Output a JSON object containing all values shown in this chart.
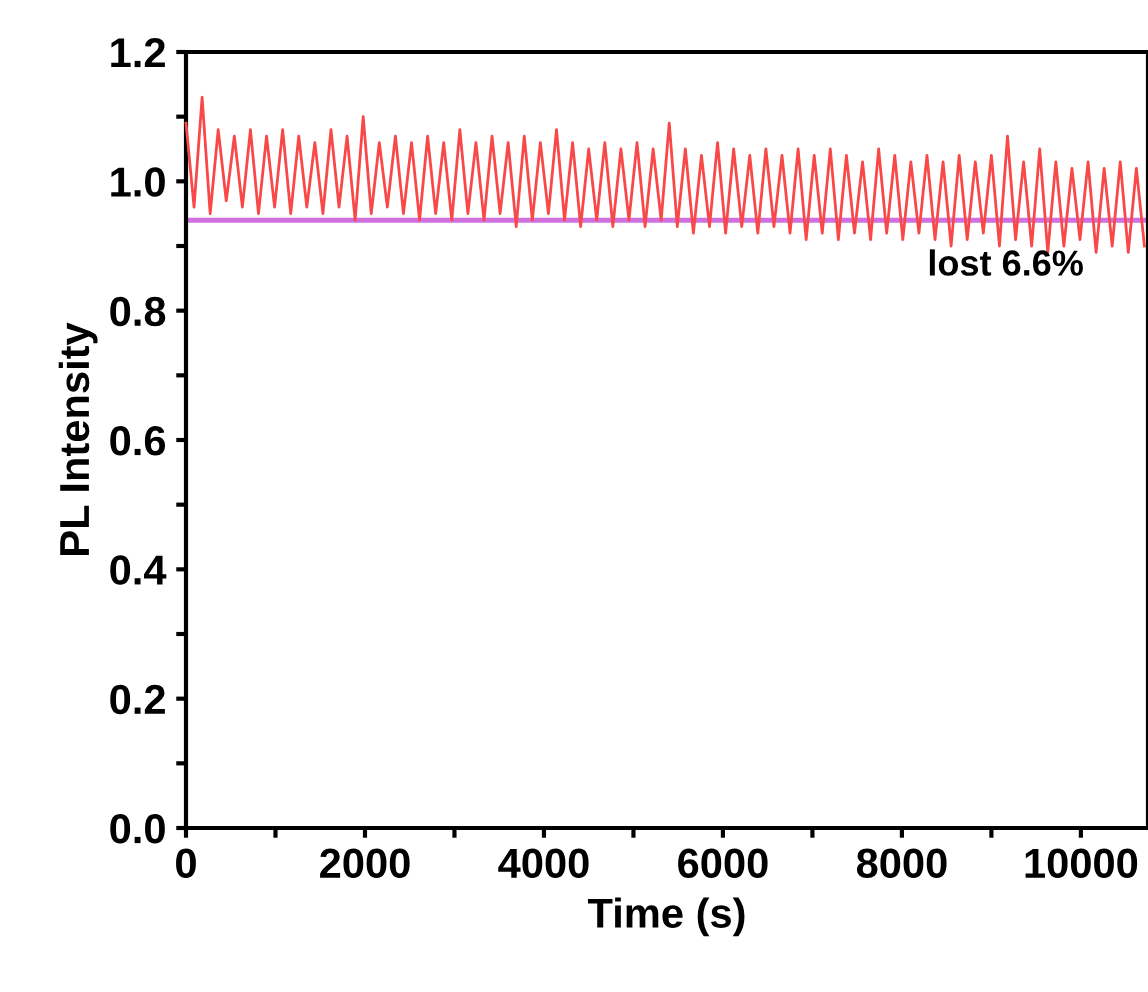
{
  "chart_data": {
    "type": "line",
    "xlabel": "Time (s)",
    "ylabel": "PL Intensity",
    "xlim": [
      0,
      10750
    ],
    "ylim": [
      0,
      1.2
    ],
    "xticks": [
      0,
      {
        "value": 1000,
        "label": null
      },
      2000,
      {
        "value": 3000,
        "label": null
      },
      4000,
      {
        "value": 5000,
        "label": null
      },
      6000,
      {
        "value": 7000,
        "label": null
      },
      8000,
      {
        "value": 9000,
        "label": null
      },
      10000
    ],
    "yticks": [
      {
        "value": 0,
        "label": "0.0"
      },
      {
        "value": 0.1,
        "label": null
      },
      0.2,
      {
        "value": 0.3,
        "label": null
      },
      0.4,
      {
        "value": 0.5,
        "label": null
      },
      0.6,
      {
        "value": 0.7,
        "label": null
      },
      0.8,
      {
        "value": 0.9,
        "label": null
      },
      {
        "value": 1.0,
        "label": "1.0"
      },
      {
        "value": 1.1,
        "label": null
      },
      1.2
    ],
    "grid": false,
    "legend": false,
    "marker": "none",
    "line_style": "solid",
    "annotations": [
      "lost 6.6%"
    ],
    "ref_lines": [
      {
        "axis": "y",
        "value": 0.94,
        "label": null,
        "color": "#d070e0",
        "line_style": "solid"
      }
    ],
    "series": [
      {
        "color": "#f84848",
        "x": [
          0,
          90,
          180,
          270,
          360,
          450,
          540,
          630,
          720,
          810,
          900,
          990,
          1080,
          1170,
          1260,
          1350,
          1440,
          1530,
          1620,
          1710,
          1800,
          1890,
          1980,
          2070,
          2160,
          2250,
          2340,
          2430,
          2520,
          2610,
          2700,
          2790,
          2880,
          2970,
          3060,
          3150,
          3240,
          3330,
          3420,
          3510,
          3600,
          3690,
          3780,
          3870,
          3960,
          4050,
          4140,
          4230,
          4320,
          4410,
          4500,
          4590,
          4680,
          4770,
          4860,
          4950,
          5040,
          5130,
          5220,
          5310,
          5400,
          5490,
          5580,
          5670,
          5760,
          5850,
          5940,
          6030,
          6120,
          6210,
          6300,
          6390,
          6480,
          6570,
          6660,
          6750,
          6840,
          6930,
          7020,
          7110,
          7200,
          7290,
          7380,
          7470,
          7560,
          7650,
          7740,
          7830,
          7920,
          8010,
          8100,
          8190,
          8280,
          8370,
          8460,
          8550,
          8640,
          8730,
          8820,
          8910,
          9000,
          9090,
          9180,
          9270,
          9360,
          9450,
          9540,
          9630,
          9720,
          9810,
          9900,
          9990,
          10080,
          10170,
          10260,
          10350,
          10440,
          10530,
          10620,
          10710
        ],
        "values": [
          1.09,
          0.96,
          1.13,
          0.95,
          1.08,
          0.97,
          1.07,
          0.96,
          1.08,
          0.95,
          1.07,
          0.96,
          1.08,
          0.95,
          1.07,
          0.96,
          1.06,
          0.95,
          1.08,
          0.96,
          1.07,
          0.94,
          1.1,
          0.95,
          1.06,
          0.96,
          1.07,
          0.95,
          1.06,
          0.94,
          1.07,
          0.95,
          1.06,
          0.94,
          1.08,
          0.95,
          1.06,
          0.94,
          1.07,
          0.95,
          1.06,
          0.93,
          1.07,
          0.94,
          1.06,
          0.95,
          1.08,
          0.94,
          1.06,
          0.93,
          1.05,
          0.94,
          1.06,
          0.93,
          1.05,
          0.94,
          1.06,
          0.93,
          1.05,
          0.94,
          1.09,
          0.93,
          1.05,
          0.92,
          1.04,
          0.93,
          1.06,
          0.92,
          1.05,
          0.93,
          1.04,
          0.92,
          1.05,
          0.93,
          1.04,
          0.92,
          1.05,
          0.91,
          1.04,
          0.92,
          1.05,
          0.91,
          1.04,
          0.92,
          1.03,
          0.91,
          1.05,
          0.92,
          1.04,
          0.91,
          1.03,
          0.92,
          1.04,
          0.91,
          1.03,
          0.9,
          1.04,
          0.91,
          1.03,
          0.92,
          1.04,
          0.9,
          1.07,
          0.91,
          1.03,
          0.9,
          1.05,
          0.89,
          1.03,
          0.9,
          1.02,
          0.91,
          1.03,
          0.89,
          1.02,
          0.9,
          1.03,
          0.89,
          1.02,
          0.9
        ]
      }
    ]
  }
}
